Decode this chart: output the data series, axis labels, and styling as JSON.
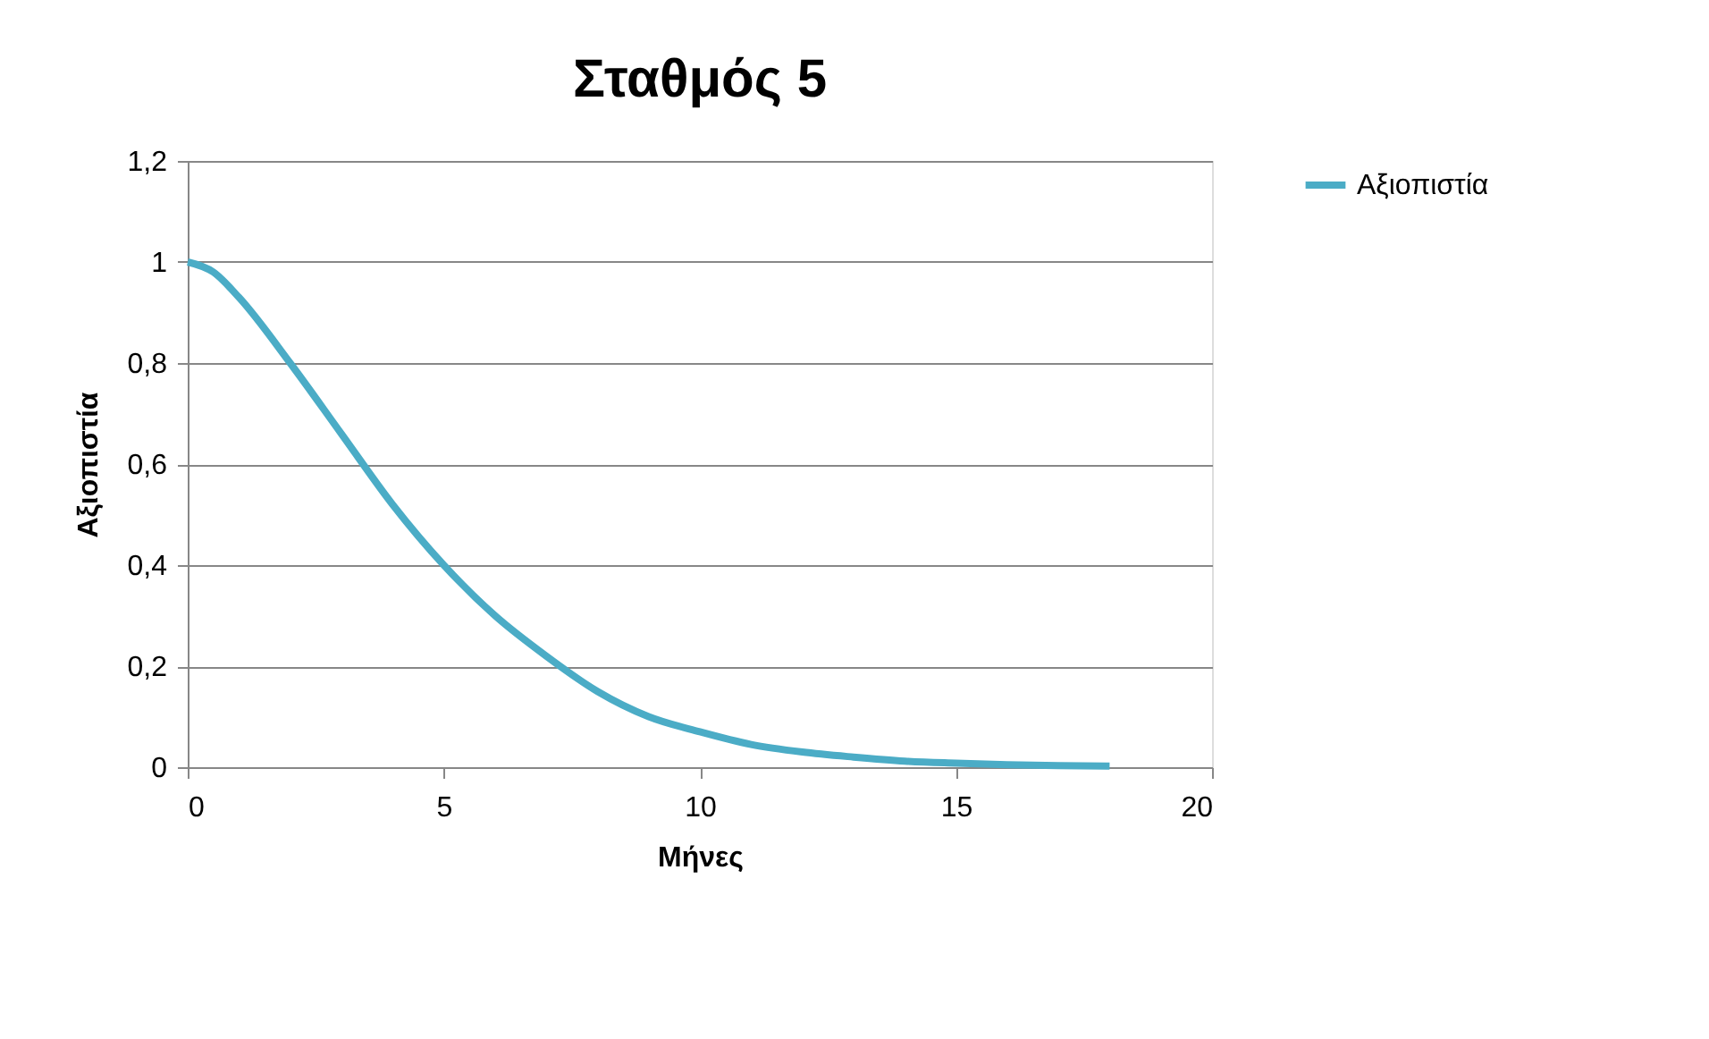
{
  "chart_data": {
    "type": "line",
    "title": "Σταθμός 5",
    "xlabel": "Μήνες",
    "ylabel": "Αξιοπιστία",
    "x": [
      0,
      0.5,
      1,
      2,
      3,
      4,
      5,
      6,
      7,
      8,
      9,
      10,
      11,
      12,
      13,
      14,
      15,
      16,
      17,
      18
    ],
    "series": [
      {
        "name": "Αξιοπιστία",
        "color": "#4bacc6",
        "values": [
          1,
          0.98,
          0.93,
          0.8,
          0.66,
          0.52,
          0.4,
          0.3,
          0.22,
          0.15,
          0.1,
          0.07,
          0.045,
          0.03,
          0.02,
          0.012,
          0.008,
          0.005,
          0.003,
          0.002
        ]
      }
    ],
    "xlim": [
      0,
      20
    ],
    "xticks": [
      0,
      5,
      10,
      15,
      20
    ],
    "ylim": [
      0,
      1.2
    ],
    "yticks": [
      0,
      {
        "value": 0.2,
        "label": "0,2"
      },
      {
        "value": 0.4,
        "label": "0,4"
      },
      {
        "value": 0.6,
        "label": "0,6"
      },
      {
        "value": 0.8,
        "label": "0,8"
      },
      1,
      {
        "value": 1.2,
        "label": "1,2"
      }
    ],
    "grid": "y",
    "legend": "right",
    "marker": "none",
    "line_style": "solid"
  }
}
